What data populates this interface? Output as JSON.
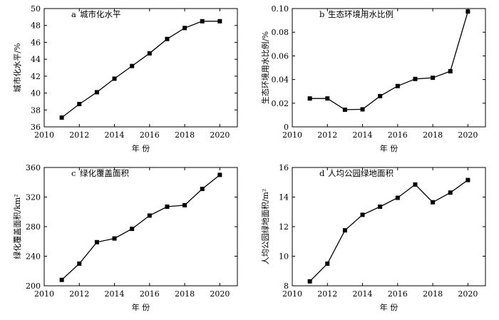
{
  "chart_data": [
    {
      "type": "line",
      "panel_label": "a",
      "title": "城市化水平",
      "xlabel": "年 份",
      "ylabel": "城市化水平/%",
      "xlim": [
        2010,
        2021
      ],
      "ylim": [
        36,
        50
      ],
      "xticks": [
        2010,
        2012,
        2014,
        2016,
        2018,
        2020
      ],
      "yticks": [
        36,
        38,
        40,
        42,
        44,
        46,
        48,
        50
      ],
      "ytick_labels": [
        "36",
        "38",
        "40",
        "42",
        "44",
        "46",
        "48",
        "50"
      ],
      "x": [
        2011,
        2012,
        2013,
        2014,
        2015,
        2016,
        2017,
        2018,
        2019,
        2020
      ],
      "values": [
        37.1,
        38.7,
        40.1,
        41.7,
        43.2,
        44.7,
        46.4,
        47.7,
        48.5,
        48.5
      ],
      "grid": false,
      "marker": "square"
    },
    {
      "type": "line",
      "panel_label": "b",
      "title": "生态环境用水比例",
      "xlabel": "年 份",
      "ylabel": "生态环境用水比例/%",
      "xlim": [
        2010,
        2021
      ],
      "ylim": [
        0,
        0.1
      ],
      "xticks": [
        2010,
        2012,
        2014,
        2016,
        2018,
        2020
      ],
      "yticks": [
        0,
        0.02,
        0.04,
        0.06,
        0.08,
        0.1
      ],
      "ytick_labels": [
        "0",
        "0.02",
        "0.04",
        "0.06",
        "0.08",
        "0.10"
      ],
      "x": [
        2011,
        2012,
        2013,
        2014,
        2015,
        2016,
        2017,
        2018,
        2019,
        2020
      ],
      "values": [
        0.024,
        0.024,
        0.0145,
        0.0148,
        0.026,
        0.0345,
        0.0405,
        0.0415,
        0.047,
        0.0975
      ],
      "grid": false,
      "marker": "square"
    },
    {
      "type": "line",
      "panel_label": "c",
      "title": "绿化覆盖面积",
      "xlabel": "年 份",
      "ylabel": "绿化覆盖面积/km²",
      "xlim": [
        2010,
        2021
      ],
      "ylim": [
        200,
        360
      ],
      "xticks": [
        2010,
        2012,
        2014,
        2016,
        2018,
        2020
      ],
      "yticks": [
        200,
        240,
        280,
        320,
        360
      ],
      "ytick_labels": [
        "200",
        "240",
        "280",
        "320",
        "360"
      ],
      "x": [
        2011,
        2012,
        2013,
        2014,
        2015,
        2016,
        2017,
        2018,
        2019,
        2020
      ],
      "values": [
        208,
        230,
        259,
        264,
        277,
        295,
        307,
        309,
        331,
        350
      ],
      "grid": false,
      "marker": "square"
    },
    {
      "type": "line",
      "panel_label": "d",
      "title": "人均公园绿地面积",
      "xlabel": "年 份",
      "ylabel": "人均公园绿地面积/m²",
      "xlim": [
        2010,
        2021
      ],
      "ylim": [
        8,
        16
      ],
      "xticks": [
        2010,
        2012,
        2014,
        2016,
        2018,
        2020
      ],
      "yticks": [
        8,
        10,
        12,
        14,
        16
      ],
      "ytick_labels": [
        "8",
        "10",
        "12",
        "14",
        "16"
      ],
      "x": [
        2011,
        2012,
        2013,
        2014,
        2015,
        2016,
        2017,
        2018,
        2019,
        2020
      ],
      "values": [
        8.3,
        9.5,
        11.75,
        12.8,
        13.35,
        13.95,
        14.85,
        13.65,
        14.3,
        15.15
      ],
      "grid": false,
      "marker": "square"
    }
  ]
}
